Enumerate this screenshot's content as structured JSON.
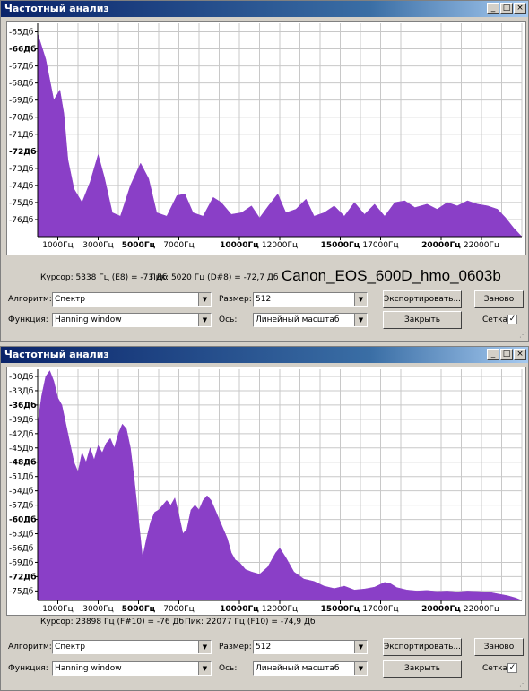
{
  "windows": [
    {
      "id": "win1",
      "title": "Частотный анализ",
      "title_buttons": [
        "_",
        "□",
        "×"
      ],
      "overlay_text": "Canon_EOS_600D_hmo_0603b",
      "status": {
        "cursor": "Курсор: 5338 Гц (E8) = -73 Дб",
        "peak": "Пик: 5020 Гц (D#8) = -72,7 Дб"
      },
      "controls": {
        "algorithm_label": "Алгоритм:",
        "algorithm_value": "Спектр",
        "size_label": "Размер:",
        "size_value": "512",
        "export_button": "Экспортировать...",
        "repeat_button": "Заново",
        "function_label": "Функция:",
        "function_value": "Hanning window",
        "axis_label": "Ось:",
        "axis_value": "Линейный масштаб",
        "close_button": "Закрыть",
        "grid_label": "Сетка",
        "grid_checked": true,
        "check_mark": "✓"
      },
      "chart_data": {
        "type": "area",
        "color": "#8a3fc7",
        "y_labels": [
          {
            "text": "-65Дб",
            "value": -65,
            "bold": false
          },
          {
            "text": "-66Дб",
            "value": -66,
            "bold": true
          },
          {
            "text": "-67Дб",
            "value": -67,
            "bold": false
          },
          {
            "text": "-68Дб",
            "value": -68,
            "bold": false
          },
          {
            "text": "-69Дб",
            "value": -69,
            "bold": false
          },
          {
            "text": "-70Дб",
            "value": -70,
            "bold": false
          },
          {
            "text": "-71Дб",
            "value": -71,
            "bold": false
          },
          {
            "text": "-72Дб",
            "value": -72,
            "bold": true
          },
          {
            "text": "-73Дб",
            "value": -73,
            "bold": false
          },
          {
            "text": "-74Дб",
            "value": -74,
            "bold": false
          },
          {
            "text": "-75Дб",
            "value": -75,
            "bold": false
          },
          {
            "text": "-76Дб",
            "value": -76,
            "bold": false
          }
        ],
        "ylim": [
          -77,
          -64.5
        ],
        "x_labels": [
          {
            "text": "1000Гц",
            "value": 1000,
            "bold": false
          },
          {
            "text": "3000Гц",
            "value": 3000,
            "bold": false
          },
          {
            "text": "5000Гц",
            "value": 5000,
            "bold": true
          },
          {
            "text": "7000Гц",
            "value": 7000,
            "bold": false
          },
          {
            "text": "10000Гц",
            "value": 10000,
            "bold": true
          },
          {
            "text": "12000Гц",
            "value": 12000,
            "bold": false
          },
          {
            "text": "15000Гц",
            "value": 15000,
            "bold": true
          },
          {
            "text": "17000Гц",
            "value": 17000,
            "bold": false
          },
          {
            "text": "20000Гц",
            "value": 20000,
            "bold": true
          },
          {
            "text": "22000Гц",
            "value": 22000,
            "bold": false
          }
        ],
        "xlim": [
          0,
          24000
        ],
        "points": [
          [
            0,
            -65.1
          ],
          [
            400,
            -66.6
          ],
          [
            800,
            -69
          ],
          [
            1100,
            -68.4
          ],
          [
            1300,
            -69.8
          ],
          [
            1500,
            -72.5
          ],
          [
            1800,
            -74.2
          ],
          [
            2200,
            -75
          ],
          [
            2600,
            -73.8
          ],
          [
            3000,
            -72.2
          ],
          [
            3300,
            -73.5
          ],
          [
            3700,
            -75.6
          ],
          [
            4100,
            -75.8
          ],
          [
            4600,
            -74
          ],
          [
            5100,
            -72.7
          ],
          [
            5500,
            -73.6
          ],
          [
            5900,
            -75.6
          ],
          [
            6400,
            -75.8
          ],
          [
            6900,
            -74.6
          ],
          [
            7300,
            -74.5
          ],
          [
            7700,
            -75.6
          ],
          [
            8200,
            -75.8
          ],
          [
            8700,
            -74.7
          ],
          [
            9100,
            -75
          ],
          [
            9600,
            -75.7
          ],
          [
            10100,
            -75.6
          ],
          [
            10600,
            -75.2
          ],
          [
            11000,
            -75.9
          ],
          [
            11500,
            -75.1
          ],
          [
            11900,
            -74.5
          ],
          [
            12300,
            -75.6
          ],
          [
            12800,
            -75.4
          ],
          [
            13300,
            -74.8
          ],
          [
            13700,
            -75.8
          ],
          [
            14200,
            -75.6
          ],
          [
            14700,
            -75.2
          ],
          [
            15200,
            -75.8
          ],
          [
            15700,
            -75
          ],
          [
            16200,
            -75.7
          ],
          [
            16700,
            -75.1
          ],
          [
            17200,
            -75.8
          ],
          [
            17700,
            -75
          ],
          [
            18200,
            -74.9
          ],
          [
            18700,
            -75.3
          ],
          [
            19300,
            -75.1
          ],
          [
            19800,
            -75.4
          ],
          [
            20300,
            -75
          ],
          [
            20800,
            -75.2
          ],
          [
            21300,
            -74.9
          ],
          [
            21800,
            -75.1
          ],
          [
            22300,
            -75.2
          ],
          [
            22800,
            -75.4
          ],
          [
            23200,
            -75.9
          ],
          [
            23600,
            -76.5
          ],
          [
            24000,
            -77
          ]
        ]
      }
    },
    {
      "id": "win2",
      "title": "Частотный анализ",
      "title_buttons": [
        "_",
        "□",
        "×"
      ],
      "overlay_text": "",
      "status": {
        "cursor": "Курсор: 23898 Гц (F#10) = -76 Дб",
        "peak": "Пик: 22077 Гц (F10) = -74,9 Дб"
      },
      "controls": {
        "algorithm_label": "Алгоритм:",
        "algorithm_value": "Спектр",
        "size_label": "Размер:",
        "size_value": "512",
        "export_button": "Экспортировать...",
        "repeat_button": "Заново",
        "function_label": "Функция:",
        "function_value": "Hanning window",
        "axis_label": "Ось:",
        "axis_value": "Линейный масштаб",
        "close_button": "Закрыть",
        "grid_label": "Сетка",
        "grid_checked": true,
        "check_mark": "✓"
      },
      "chart_data": {
        "type": "area",
        "color": "#8a3fc7",
        "y_labels": [
          {
            "text": "-30Дб",
            "value": -30,
            "bold": false
          },
          {
            "text": "-33Дб",
            "value": -33,
            "bold": false
          },
          {
            "text": "-36Дб",
            "value": -36,
            "bold": true
          },
          {
            "text": "-39Дб",
            "value": -39,
            "bold": false
          },
          {
            "text": "-42Дб",
            "value": -42,
            "bold": false
          },
          {
            "text": "-45Дб",
            "value": -45,
            "bold": false
          },
          {
            "text": "-48Дб",
            "value": -48,
            "bold": true
          },
          {
            "text": "-51Дб",
            "value": -51,
            "bold": false
          },
          {
            "text": "-54Дб",
            "value": -54,
            "bold": false
          },
          {
            "text": "-57Дб",
            "value": -57,
            "bold": false
          },
          {
            "text": "-60Дб",
            "value": -60,
            "bold": true
          },
          {
            "text": "-63Дб",
            "value": -63,
            "bold": false
          },
          {
            "text": "-66Дб",
            "value": -66,
            "bold": false
          },
          {
            "text": "-69Дб",
            "value": -69,
            "bold": false
          },
          {
            "text": "-72Дб",
            "value": -72,
            "bold": true
          },
          {
            "text": "-75Дб",
            "value": -75,
            "bold": false
          }
        ],
        "ylim": [
          -77,
          -28.5
        ],
        "x_labels": [
          {
            "text": "1000Гц",
            "value": 1000,
            "bold": false
          },
          {
            "text": "3000Гц",
            "value": 3000,
            "bold": false
          },
          {
            "text": "5000Гц",
            "value": 5000,
            "bold": true
          },
          {
            "text": "7000Гц",
            "value": 7000,
            "bold": false
          },
          {
            "text": "10000Гц",
            "value": 10000,
            "bold": true
          },
          {
            "text": "12000Гц",
            "value": 12000,
            "bold": false
          },
          {
            "text": "15000Гц",
            "value": 15000,
            "bold": true
          },
          {
            "text": "17000Гц",
            "value": 17000,
            "bold": false
          },
          {
            "text": "20000Гц",
            "value": 20000,
            "bold": true
          },
          {
            "text": "22000Гц",
            "value": 22000,
            "bold": false
          }
        ],
        "xlim": [
          0,
          24000
        ],
        "points": [
          [
            0,
            -40
          ],
          [
            200,
            -34
          ],
          [
            400,
            -30
          ],
          [
            600,
            -28.8
          ],
          [
            800,
            -31
          ],
          [
            1000,
            -34.5
          ],
          [
            1200,
            -36
          ],
          [
            1400,
            -40
          ],
          [
            1600,
            -44
          ],
          [
            1800,
            -48
          ],
          [
            2000,
            -50
          ],
          [
            2200,
            -46
          ],
          [
            2400,
            -48
          ],
          [
            2600,
            -45
          ],
          [
            2800,
            -47.5
          ],
          [
            3000,
            -44.5
          ],
          [
            3200,
            -46
          ],
          [
            3400,
            -44
          ],
          [
            3600,
            -43
          ],
          [
            3800,
            -45
          ],
          [
            4000,
            -42
          ],
          [
            4200,
            -40
          ],
          [
            4400,
            -41
          ],
          [
            4600,
            -45
          ],
          [
            4800,
            -52
          ],
          [
            5000,
            -60
          ],
          [
            5200,
            -68
          ],
          [
            5400,
            -64
          ],
          [
            5600,
            -60.5
          ],
          [
            5800,
            -58.5
          ],
          [
            6000,
            -58
          ],
          [
            6200,
            -57
          ],
          [
            6400,
            -56
          ],
          [
            6600,
            -57
          ],
          [
            6800,
            -55.5
          ],
          [
            7000,
            -59
          ],
          [
            7200,
            -63
          ],
          [
            7400,
            -62
          ],
          [
            7600,
            -58
          ],
          [
            7800,
            -57
          ],
          [
            8000,
            -58
          ],
          [
            8200,
            -56
          ],
          [
            8400,
            -55
          ],
          [
            8600,
            -56
          ],
          [
            8800,
            -58
          ],
          [
            9000,
            -60
          ],
          [
            9200,
            -62
          ],
          [
            9400,
            -64
          ],
          [
            9600,
            -67
          ],
          [
            9800,
            -68.5
          ],
          [
            10000,
            -69
          ],
          [
            10300,
            -70.5
          ],
          [
            10600,
            -71
          ],
          [
            11000,
            -71.5
          ],
          [
            11400,
            -70
          ],
          [
            11800,
            -67
          ],
          [
            12000,
            -66
          ],
          [
            12300,
            -68
          ],
          [
            12700,
            -71
          ],
          [
            13200,
            -72.5
          ],
          [
            13700,
            -73
          ],
          [
            14200,
            -74
          ],
          [
            14700,
            -74.5
          ],
          [
            15200,
            -74
          ],
          [
            15700,
            -74.8
          ],
          [
            16200,
            -74.6
          ],
          [
            16700,
            -74.2
          ],
          [
            17200,
            -73.2
          ],
          [
            17500,
            -73.5
          ],
          [
            17800,
            -74.3
          ],
          [
            18300,
            -74.8
          ],
          [
            18800,
            -75
          ],
          [
            19300,
            -74.9
          ],
          [
            19800,
            -75.1
          ],
          [
            20300,
            -75
          ],
          [
            20800,
            -75.2
          ],
          [
            21300,
            -75
          ],
          [
            21800,
            -75.1
          ],
          [
            22300,
            -75.2
          ],
          [
            22800,
            -75.6
          ],
          [
            23300,
            -76
          ],
          [
            23700,
            -76.5
          ],
          [
            24000,
            -77
          ]
        ]
      }
    }
  ]
}
